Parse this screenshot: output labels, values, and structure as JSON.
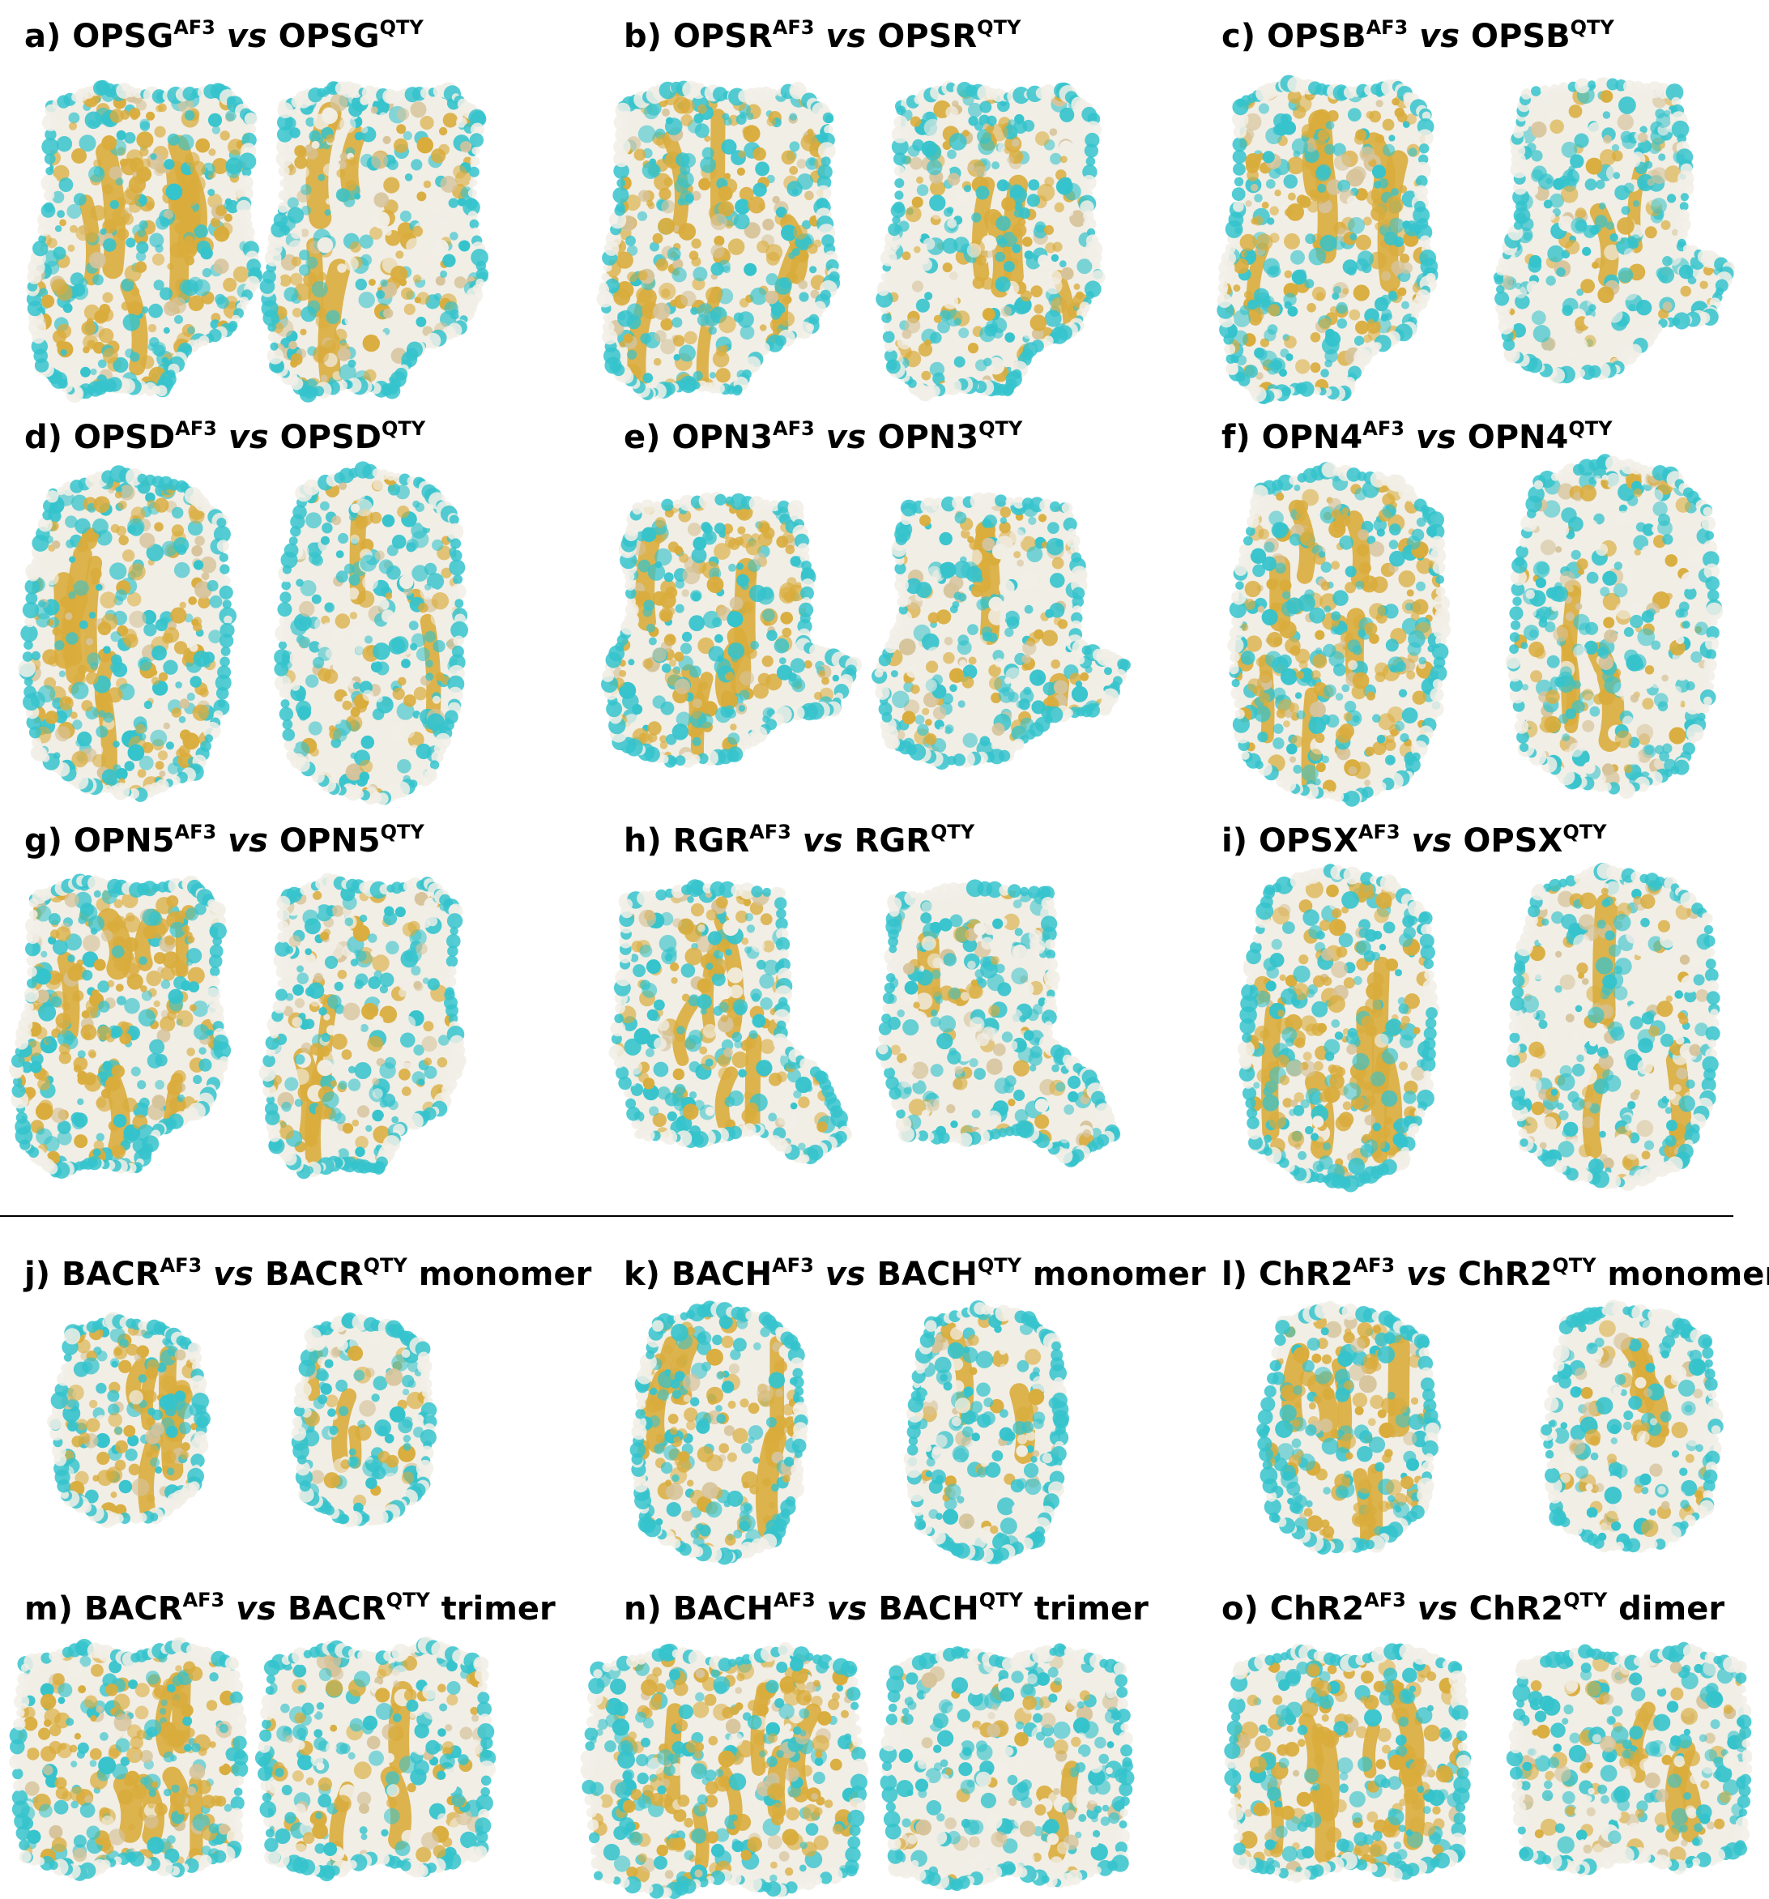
{
  "palette": {
    "cyan": "#35c3cc",
    "gold": "#d9ac3c",
    "white": "#f1eee6",
    "tan": "#d6c39a"
  },
  "panels": [
    {
      "letter": "a)",
      "left": "OPSG",
      "right": "OPSG",
      "sup_left": "AF3",
      "vs": "vs",
      "sup_right": "QTY",
      "suffix": "",
      "gold_left": 0.46,
      "gold_right": 0.28
    },
    {
      "letter": "b)",
      "left": "OPSR",
      "right": "OPSR",
      "sup_left": "AF3",
      "vs": "vs",
      "sup_right": "QTY",
      "suffix": "",
      "gold_left": 0.45,
      "gold_right": 0.27
    },
    {
      "letter": "c)",
      "left": "OPSB",
      "right": "OPSB",
      "sup_left": "AF3",
      "vs": "vs",
      "sup_right": "QTY",
      "suffix": "",
      "gold_left": 0.44,
      "gold_right": 0.14
    },
    {
      "letter": "d)",
      "left": "OPSD",
      "right": "OPSD",
      "sup_left": "AF3",
      "vs": "vs",
      "sup_right": "QTY",
      "suffix": "",
      "gold_left": 0.42,
      "gold_right": 0.16
    },
    {
      "letter": "e)",
      "left": "OPN3",
      "right": "OPN3",
      "sup_left": "AF3",
      "vs": "vs",
      "sup_right": "QTY",
      "suffix": "",
      "gold_left": 0.44,
      "gold_right": 0.22
    },
    {
      "letter": "f)",
      "left": "OPN4",
      "right": "OPN4",
      "sup_left": "AF3",
      "vs": "vs",
      "sup_right": "QTY",
      "suffix": "",
      "gold_left": 0.43,
      "gold_right": 0.18
    },
    {
      "letter": "g)",
      "left": "OPN5",
      "right": "OPN5",
      "sup_left": "AF3",
      "vs": "vs",
      "sup_right": "QTY",
      "suffix": "",
      "gold_left": 0.45,
      "gold_right": 0.22
    },
    {
      "letter": "h)",
      "left": "RGR",
      "right": "RGR",
      "sup_left": "AF3",
      "vs": "vs",
      "sup_right": "QTY",
      "suffix": "",
      "gold_left": 0.38,
      "gold_right": 0.16
    },
    {
      "letter": "i)",
      "left": "OPSX",
      "right": "OPSX",
      "sup_left": "AF3",
      "vs": "vs",
      "sup_right": "QTY",
      "suffix": "",
      "gold_left": 0.42,
      "gold_right": 0.2
    },
    {
      "letter": "j)",
      "left": "BACR",
      "right": "BACR",
      "sup_left": "AF3",
      "vs": "vs",
      "sup_right": "QTY",
      "suffix": "monomer",
      "gold_left": 0.42,
      "gold_right": 0.18
    },
    {
      "letter": "k)",
      "left": "BACH",
      "right": "BACH",
      "sup_left": "AF3",
      "vs": "vs",
      "sup_right": "QTY",
      "suffix": "monomer",
      "gold_left": 0.42,
      "gold_right": 0.14
    },
    {
      "letter": "l)",
      "left": "ChR2",
      "right": "ChR2",
      "sup_left": "AF3",
      "vs": "vs",
      "sup_right": "QTY",
      "suffix": "monomer",
      "gold_left": 0.46,
      "gold_right": 0.18
    },
    {
      "letter": "m)",
      "left": "BACR",
      "right": "BACR",
      "sup_left": "AF3",
      "vs": "vs",
      "sup_right": "QTY",
      "suffix": "trimer",
      "gold_left": 0.4,
      "gold_right": 0.18
    },
    {
      "letter": "n)",
      "left": "BACH",
      "right": "BACH",
      "sup_left": "AF3",
      "vs": "vs",
      "sup_right": "QTY",
      "suffix": "trimer",
      "gold_left": 0.4,
      "gold_right": 0.14
    },
    {
      "letter": "o)",
      "left": "ChR2",
      "right": "ChR2",
      "sup_left": "AF3",
      "vs": "vs",
      "sup_right": "QTY",
      "suffix": "dimer",
      "gold_left": 0.5,
      "gold_right": 0.22
    }
  ]
}
